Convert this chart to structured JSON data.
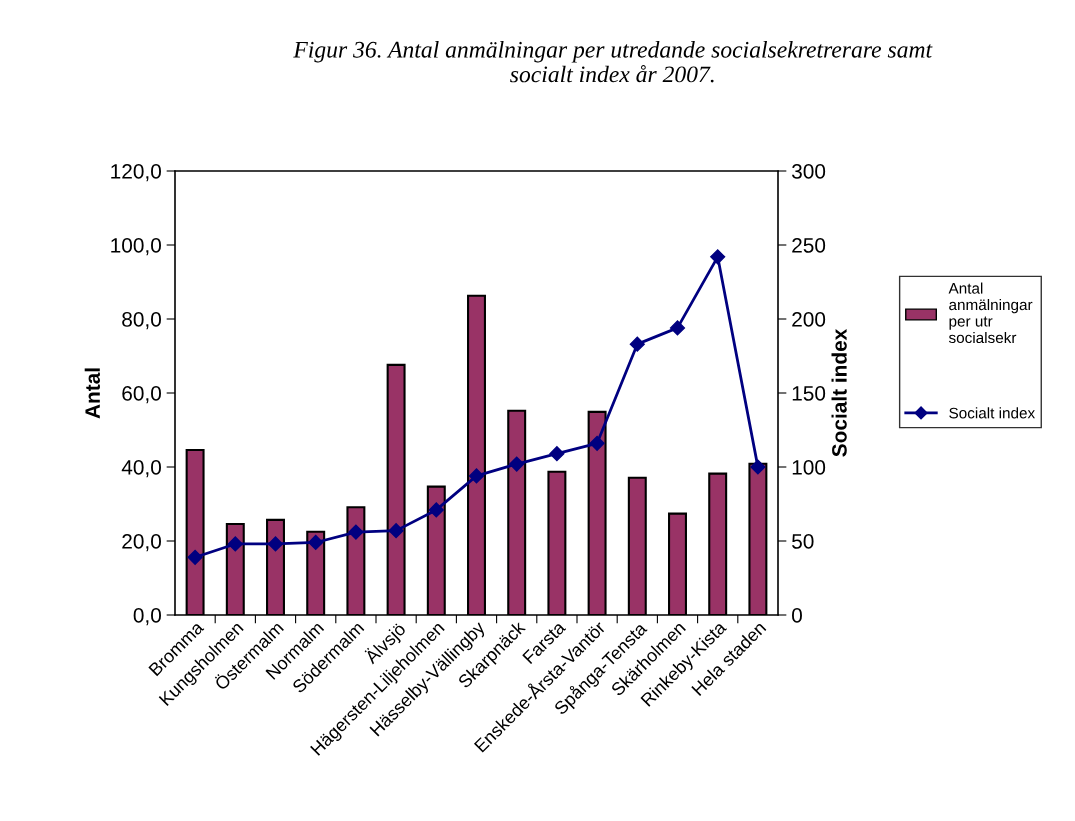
{
  "chart_data": {
    "type": "bar",
    "title": "Figur 36. Antal anmälningar per utredande socialsekretrerare samt\nsocialt index år 2007.",
    "categories": [
      "Bromma",
      "Kungsholmen",
      "Östermalm",
      "Normalm",
      "Södermalm",
      "Älvsjö",
      "Hägersten-Liljeholmen",
      "Hässelby-Vällingby",
      "Skarpnäck",
      "Farsta",
      "Enskede-Årsta-Vantör",
      "Spånga-Tensta",
      "Skärholmen",
      "Rinkeby-Kista",
      "Hela staden"
    ],
    "series": [
      {
        "name": "Antal\nanmälningar\nper utr\nsocialsekr",
        "color": "#993366",
        "values": [
          44.6,
          24.6,
          25.7,
          22.5,
          29.1,
          67.6,
          34.7,
          86.3,
          55.2,
          38.7,
          54.9,
          37.1,
          27.4,
          38.2,
          40.9
        ]
      },
      {
        "name": "Socialt index",
        "type": "line",
        "axis": "y2",
        "color": "#000080",
        "marker": "diamond",
        "values": [
          39,
          48,
          48,
          49,
          56,
          57,
          71,
          94,
          102,
          109,
          116,
          183,
          194,
          242,
          100
        ]
      }
    ],
    "ylabel": "Antal",
    "y2label": "Socialt index",
    "ylim": [
      0,
      120
    ],
    "yticks": [
      {
        "value": 0,
        "label": "0,0"
      },
      {
        "value": 20,
        "label": "20,0"
      },
      {
        "value": 40,
        "label": "40,0"
      },
      {
        "value": 60,
        "label": "60,0"
      },
      {
        "value": 80,
        "label": "80,0"
      },
      {
        "value": 100,
        "label": "100,0"
      },
      {
        "value": 120,
        "label": "120,0"
      }
    ],
    "y2lim": [
      0,
      300
    ],
    "y2ticks": [
      0,
      50,
      100,
      150,
      200,
      250,
      300
    ],
    "legend": "right",
    "grid": false
  }
}
